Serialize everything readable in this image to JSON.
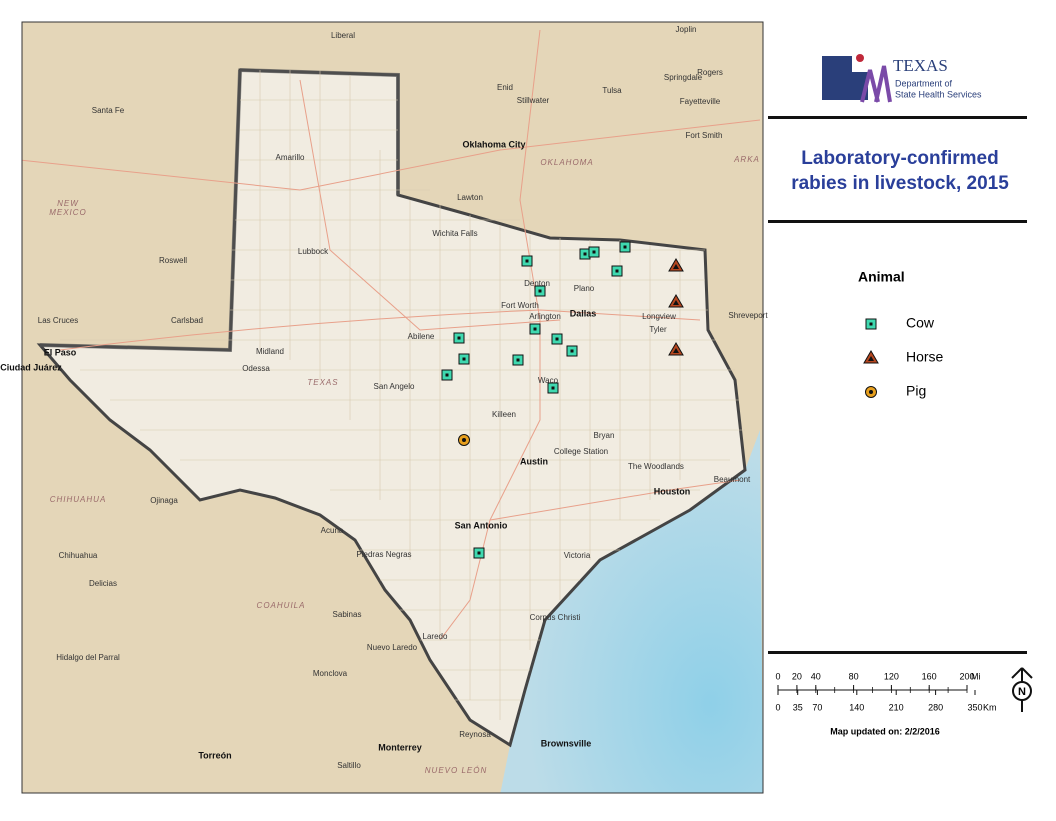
{
  "logo": {
    "name": "TEXAS",
    "agency": [
      "Department of",
      "State Health Services"
    ]
  },
  "title": [
    "Laboratory-confirmed",
    "rabies in livestock, 2015"
  ],
  "legend": {
    "title": "Animal",
    "items": [
      {
        "label": "Cow",
        "color": "#3fd9b0"
      },
      {
        "label": "Horse",
        "color": "#b5461f"
      },
      {
        "label": "Pig",
        "color": "#e8a01e"
      }
    ]
  },
  "scale": {
    "miles": [
      0,
      20,
      40,
      80,
      120,
      160,
      200
    ],
    "miles_unit": "Mi",
    "km": [
      0,
      35,
      70,
      140,
      210,
      280,
      350
    ],
    "km_unit": "Km"
  },
  "north": "N",
  "updated": "Map updated on: 2/2/2016",
  "map_labels": [
    "Liberal",
    "Joplin",
    "Enid",
    "Stillwater",
    "Tulsa",
    "Springdale",
    "Rogers",
    "Fayetteville",
    "Santa Fe",
    "Amarillo",
    "Oklahoma City",
    "OKLAHOMA",
    "Fort Smith",
    "NEW",
    "MEXICO",
    "Lawton",
    "Wichita Falls",
    "Lubbock",
    "Roswell",
    "Denton",
    "Plano",
    "Fort Worth",
    "Dallas",
    "Carlsbad",
    "Las Cruces",
    "Longview",
    "Shreveport",
    "Tyler",
    "Arlington",
    "Abilene",
    "Midland",
    "El Paso",
    "Ciudad Juárez",
    "Odessa",
    "TEXAS",
    "San Angelo",
    "Waco",
    "Killeen",
    "Bryan",
    "College Station",
    "Austin",
    "The Woodlands",
    "Houston",
    "Beaumont",
    "CHIHUAHUA",
    "Ojinaga",
    "Acuna",
    "San Antonio",
    "Victoria",
    "Piedras Negras",
    "Chihuahua",
    "Delicias",
    "COAHUILA",
    "Sabinas",
    "Corpus Christi",
    "Laredo",
    "Nuevo Laredo",
    "Hidalgo del Parral",
    "Monclova",
    "Reynosa",
    "Brownsville",
    "Monterrey",
    "Torreón",
    "Saltillo",
    "NUEVO LEÓN",
    "ARKA"
  ]
}
